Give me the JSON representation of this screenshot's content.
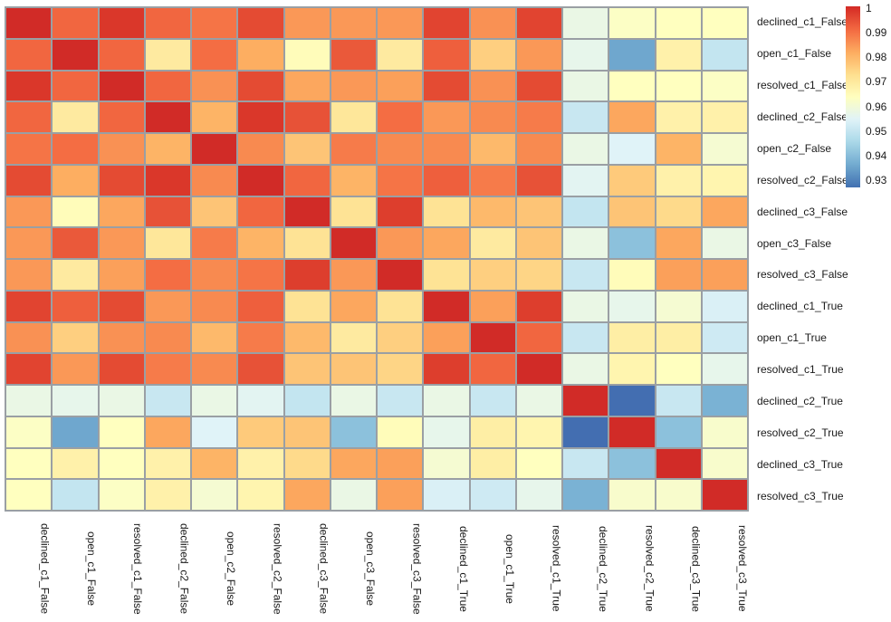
{
  "figure": {
    "background": "#ffffff",
    "grid_line_color": "#9a9fa4",
    "text_color": "#1a1a1a"
  },
  "chart_data": {
    "type": "heatmap",
    "title": "",
    "xlabel": "",
    "ylabel": "",
    "grid_on": true,
    "legend_position": "right",
    "labels": [
      "declined_c1_False",
      "open_c1_False",
      "resolved_c1_False",
      "declined_c2_False",
      "open_c2_False",
      "resolved_c2_False",
      "declined_c3_False",
      "open_c3_False",
      "resolved_c3_False",
      "declined_c1_True",
      "open_c1_True",
      "resolved_c1_True",
      "declined_c2_True",
      "resolved_c2_True",
      "declined_c3_True",
      "resolved_c3_True"
    ],
    "matrix": [
      [
        1.0,
        0.991,
        0.998,
        0.991,
        0.989,
        0.995,
        0.984,
        0.984,
        0.984,
        0.996,
        0.985,
        0.996,
        0.957,
        0.962,
        0.963,
        0.963
      ],
      [
        0.991,
        1.0,
        0.991,
        0.969,
        0.99,
        0.981,
        0.964,
        0.993,
        0.969,
        0.992,
        0.975,
        0.984,
        0.956,
        0.935,
        0.967,
        0.949
      ],
      [
        0.998,
        0.991,
        1.0,
        0.991,
        0.985,
        0.995,
        0.982,
        0.984,
        0.983,
        0.995,
        0.985,
        0.995,
        0.957,
        0.963,
        0.963,
        0.962
      ],
      [
        0.991,
        0.969,
        0.991,
        1.0,
        0.98,
        0.998,
        0.994,
        0.97,
        0.99,
        0.984,
        0.986,
        0.988,
        0.95,
        0.982,
        0.967,
        0.967
      ],
      [
        0.989,
        0.99,
        0.985,
        0.98,
        1.0,
        0.986,
        0.977,
        0.988,
        0.986,
        0.986,
        0.979,
        0.986,
        0.957,
        0.954,
        0.98,
        0.96
      ],
      [
        0.995,
        0.981,
        0.995,
        0.998,
        0.986,
        1.0,
        0.991,
        0.98,
        0.989,
        0.992,
        0.988,
        0.994,
        0.955,
        0.976,
        0.967,
        0.966
      ],
      [
        0.984,
        0.964,
        0.982,
        0.994,
        0.977,
        0.991,
        1.0,
        0.971,
        0.997,
        0.971,
        0.979,
        0.977,
        0.949,
        0.977,
        0.973,
        0.982
      ],
      [
        0.984,
        0.993,
        0.984,
        0.97,
        0.988,
        0.98,
        0.971,
        1.0,
        0.984,
        0.982,
        0.969,
        0.977,
        0.957,
        0.94,
        0.982,
        0.957
      ],
      [
        0.984,
        0.969,
        0.983,
        0.99,
        0.986,
        0.989,
        0.997,
        0.984,
        1.0,
        0.971,
        0.975,
        0.974,
        0.95,
        0.964,
        0.983,
        0.983
      ],
      [
        0.996,
        0.992,
        0.995,
        0.984,
        0.986,
        0.992,
        0.971,
        0.982,
        0.971,
        1.0,
        0.983,
        0.997,
        0.957,
        0.956,
        0.96,
        0.953
      ],
      [
        0.985,
        0.975,
        0.985,
        0.986,
        0.979,
        0.988,
        0.979,
        0.969,
        0.975,
        0.983,
        1.0,
        0.991,
        0.95,
        0.968,
        0.968,
        0.951
      ],
      [
        0.996,
        0.984,
        0.995,
        0.988,
        0.986,
        0.994,
        0.977,
        0.977,
        0.974,
        0.997,
        0.991,
        1.0,
        0.957,
        0.966,
        0.963,
        0.956
      ],
      [
        0.957,
        0.956,
        0.957,
        0.95,
        0.957,
        0.955,
        0.949,
        0.957,
        0.95,
        0.957,
        0.95,
        0.957,
        1.0,
        0.926,
        0.95,
        0.937
      ],
      [
        0.962,
        0.935,
        0.963,
        0.982,
        0.954,
        0.976,
        0.977,
        0.94,
        0.964,
        0.956,
        0.968,
        0.966,
        0.926,
        1.0,
        0.94,
        0.961
      ],
      [
        0.963,
        0.967,
        0.963,
        0.967,
        0.98,
        0.967,
        0.973,
        0.982,
        0.983,
        0.96,
        0.968,
        0.963,
        0.95,
        0.94,
        1.0,
        0.961
      ],
      [
        0.963,
        0.949,
        0.962,
        0.967,
        0.96,
        0.966,
        0.982,
        0.957,
        0.983,
        0.953,
        0.951,
        0.956,
        0.937,
        0.961,
        0.961,
        1.0
      ]
    ],
    "colorbar": {
      "min": 0.9263,
      "max": 1.0,
      "tick_labels": [
        "1",
        "0.99",
        "0.98",
        "0.97",
        "0.96",
        "0.95",
        "0.94",
        "0.93"
      ],
      "tick_values": [
        1.0,
        0.99,
        0.98,
        0.97,
        0.96,
        0.95,
        0.94,
        0.93
      ]
    },
    "colormap": {
      "name": "RdYlBu_r",
      "norm_domain": [
        0.918,
        1.008
      ],
      "anchors": [
        "#313695",
        "#4575b4",
        "#74add1",
        "#abd9e9",
        "#e0f3f8",
        "#ffffbf",
        "#fee090",
        "#fdae61",
        "#f46d43",
        "#d73027",
        "#a50026"
      ]
    }
  }
}
